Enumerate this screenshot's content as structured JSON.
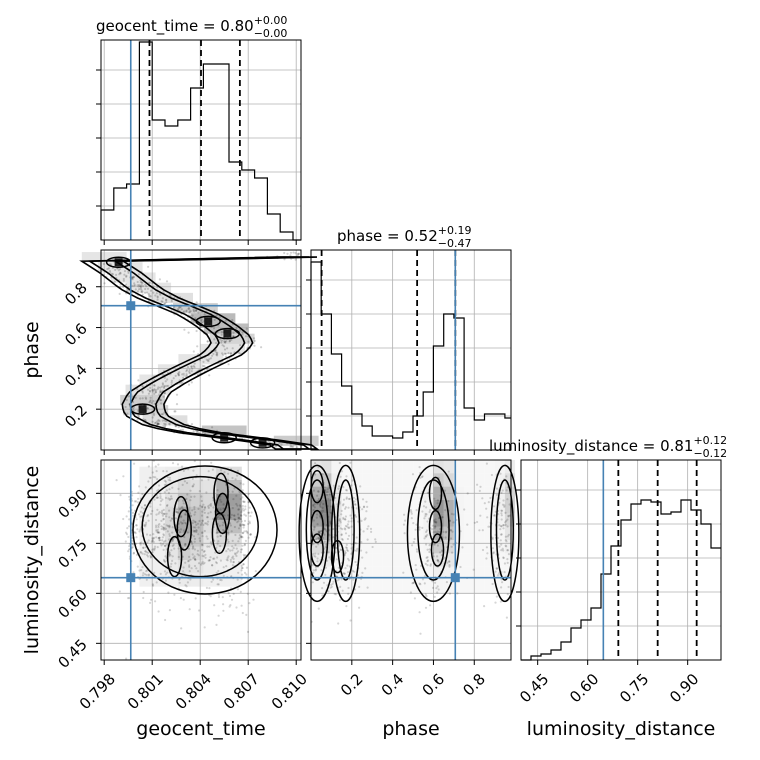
{
  "chart_data": {
    "type": "corner",
    "parameters": [
      "geocent_time",
      "phase",
      "luminosity_distance"
    ],
    "injection": {
      "geocent_time": 0.79966,
      "phase": 0.707,
      "luminosity_distance": 0.647
    },
    "grid": true,
    "titles": [
      {
        "name": "geocent_time",
        "median": "0.80",
        "plus": "+0.00",
        "minus": "−0.00"
      },
      {
        "name": "phase",
        "median": "0.52",
        "plus": "+0.19",
        "minus": "−0.47"
      },
      {
        "name": "luminosity_distance",
        "median": "0.81",
        "plus": "+0.12",
        "minus": "−0.12"
      }
    ],
    "axes": {
      "geocent_time": {
        "lim": [
          0.7978,
          0.8103
        ],
        "ticks": [
          0.798,
          0.801,
          0.804,
          0.807,
          0.81
        ],
        "tick_labels": [
          "0.798",
          "0.801",
          "0.804",
          "0.807",
          "0.810"
        ]
      },
      "phase": {
        "lim": [
          0.0,
          0.98
        ],
        "ticks": [
          0.2,
          0.4,
          0.6,
          0.8
        ],
        "tick_labels": [
          "0.2",
          "0.4",
          "0.6",
          "0.8"
        ]
      },
      "luminosity_distance": {
        "lim": [
          0.4,
          1.0
        ],
        "ticks": [
          0.45,
          0.6,
          0.75,
          0.9
        ],
        "tick_labels": [
          "0.45",
          "0.60",
          "0.75",
          "0.90"
        ]
      }
    },
    "histograms": [
      {
        "param": "geocent_time",
        "quantiles": [
          0.80083,
          0.80405,
          0.80648
        ],
        "bins": [
          0.7978,
          0.7986,
          0.7994,
          0.8002,
          0.801,
          0.8018,
          0.8026,
          0.8034,
          0.8042,
          0.805,
          0.8058,
          0.8066,
          0.8074,
          0.8082,
          0.809,
          0.8098,
          0.8103
        ],
        "counts": [
          0.15,
          0.26,
          0.28,
          0.99,
          0.6,
          0.57,
          0.6,
          0.76,
          0.88,
          0.88,
          0.39,
          0.35,
          0.31,
          0.13,
          0.04,
          0.0
        ]
      },
      {
        "param": "phase",
        "quantiles": [
          0.052,
          0.52,
          0.707
        ],
        "bins": [
          0.0,
          0.05,
          0.1,
          0.15,
          0.2,
          0.25,
          0.3,
          0.35,
          0.4,
          0.45,
          0.5,
          0.55,
          0.6,
          0.65,
          0.7,
          0.75,
          0.8,
          0.85,
          0.9,
          0.95,
          0.98
        ],
        "counts": [
          0.94,
          0.68,
          0.48,
          0.32,
          0.18,
          0.12,
          0.07,
          0.07,
          0.06,
          0.09,
          0.17,
          0.29,
          0.52,
          0.68,
          0.66,
          0.21,
          0.15,
          0.18,
          0.18,
          0.16
        ]
      },
      {
        "param": "luminosity_distance",
        "quantiles": [
          0.692,
          0.81,
          0.927
        ],
        "bins": [
          0.4,
          0.43,
          0.46,
          0.49,
          0.52,
          0.55,
          0.58,
          0.61,
          0.64,
          0.67,
          0.7,
          0.73,
          0.76,
          0.79,
          0.82,
          0.85,
          0.88,
          0.91,
          0.94,
          0.97,
          1.0
        ],
        "counts": [
          0.0,
          0.02,
          0.03,
          0.05,
          0.09,
          0.16,
          0.2,
          0.26,
          0.43,
          0.57,
          0.7,
          0.78,
          0.8,
          0.79,
          0.73,
          0.74,
          0.8,
          0.75,
          0.68,
          0.56
        ]
      }
    ],
    "density_2d": [
      {
        "x": "geocent_time",
        "y": "phase",
        "path": [
          [
            0.7978,
            0.93
          ],
          [
            0.799,
            0.87
          ],
          [
            0.8003,
            0.79
          ],
          [
            0.8015,
            0.74
          ],
          [
            0.8028,
            0.7
          ],
          [
            0.804,
            0.66
          ],
          [
            0.805,
            0.61
          ],
          [
            0.8058,
            0.56
          ],
          [
            0.806,
            0.52
          ],
          [
            0.8054,
            0.47
          ],
          [
            0.8043,
            0.43
          ],
          [
            0.803,
            0.38
          ],
          [
            0.8018,
            0.33
          ],
          [
            0.8008,
            0.28
          ],
          [
            0.8004,
            0.22
          ],
          [
            0.8006,
            0.17
          ],
          [
            0.8018,
            0.12
          ],
          [
            0.8035,
            0.09
          ],
          [
            0.8055,
            0.07
          ],
          [
            0.8072,
            0.05
          ],
          [
            0.8086,
            0.04
          ],
          [
            0.81,
            0.02
          ]
        ],
        "peaks": [
          [
            0.8045,
            0.63
          ],
          [
            0.8057,
            0.57
          ],
          [
            0.8004,
            0.2
          ],
          [
            0.8055,
            0.06
          ],
          [
            0.8079,
            0.035
          ],
          [
            0.7989,
            0.92
          ]
        ]
      },
      {
        "x": "geocent_time",
        "y": "luminosity_distance",
        "peaks": [
          [
            0.8053,
            0.9
          ],
          [
            0.8054,
            0.84
          ],
          [
            0.8052,
            0.78
          ],
          [
            0.8028,
            0.83
          ],
          [
            0.803,
            0.79
          ],
          [
            0.8024,
            0.71
          ]
        ]
      },
      {
        "x": "phase",
        "y": "luminosity_distance",
        "bands": [
          0.03,
          0.17,
          0.6,
          0.95
        ],
        "peaks": [
          [
            0.03,
            0.92
          ],
          [
            0.03,
            0.8
          ],
          [
            0.03,
            0.73
          ],
          [
            0.61,
            0.9
          ],
          [
            0.61,
            0.8
          ],
          [
            0.62,
            0.73
          ],
          [
            0.13,
            0.71
          ]
        ]
      }
    ]
  }
}
